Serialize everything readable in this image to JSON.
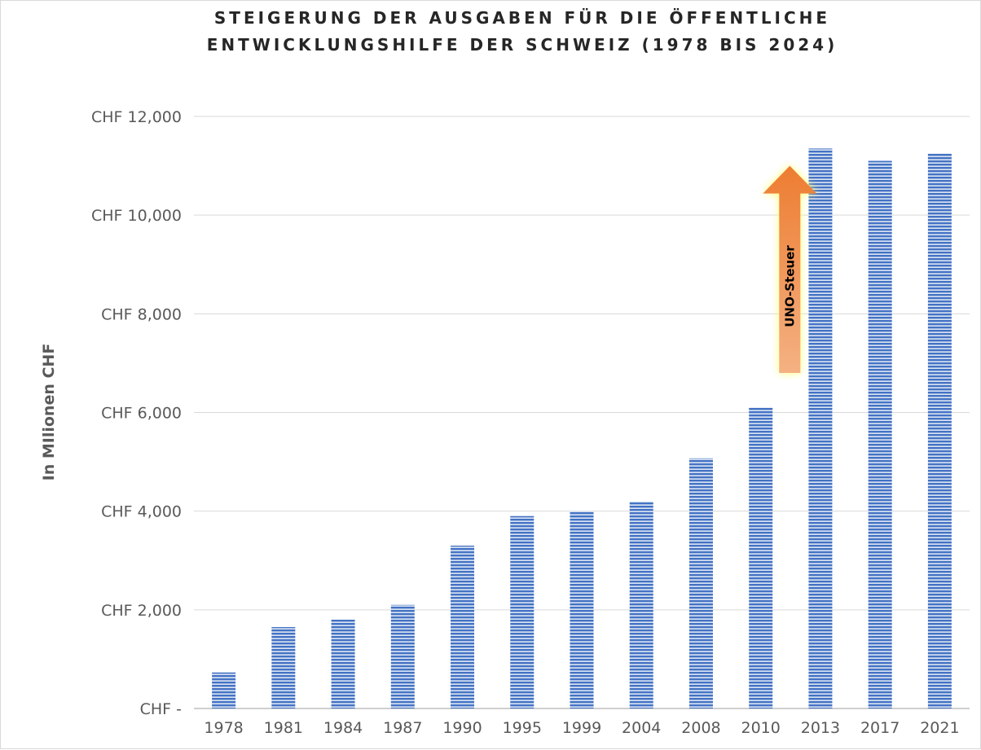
{
  "chart_data": {
    "type": "bar",
    "title_lines": [
      "STEIGERUNG DER AUSGABEN FÜR DIE ÖFFENTLICHE",
      "ENTWICKLUNGSHILFE DER SCHWEIZ (1978 BIS 2024)"
    ],
    "ylabel": "In MIlionen CHF",
    "xlabel": "",
    "categories": [
      "1978",
      "1981",
      "1984",
      "1987",
      "1990",
      "1995",
      "1999",
      "2004",
      "2008",
      "2010",
      "2013",
      "2017",
      "2021"
    ],
    "values": [
      730,
      1650,
      1800,
      2100,
      3300,
      3900,
      4000,
      4200,
      5070,
      6100,
      11350,
      11100,
      11250
    ],
    "ylim": [
      0,
      12000
    ],
    "yticks": [
      {
        "value": 0,
        "label": "CHF -"
      },
      {
        "value": 2000,
        "label": "CHF 2,000"
      },
      {
        "value": 4000,
        "label": "CHF 4,000"
      },
      {
        "value": 6000,
        "label": "CHF 6,000"
      },
      {
        "value": 8000,
        "label": "CHF 8,000"
      },
      {
        "value": 10000,
        "label": "CHF 10,000"
      },
      {
        "value": 12000,
        "label": "CHF 12,000"
      }
    ],
    "grid": true,
    "legend": "none",
    "bar_color": "#4472c4",
    "bar_fill": "horizontal-stripes",
    "annotation": {
      "type": "arrow",
      "text": "UNO-Steuer",
      "from_value": 6800,
      "to_value": 11000,
      "between_categories": [
        "2010",
        "2013"
      ],
      "colors": {
        "top": "#ed7d31",
        "bottom": "#f4b183",
        "glow": "#ffff66"
      }
    }
  }
}
